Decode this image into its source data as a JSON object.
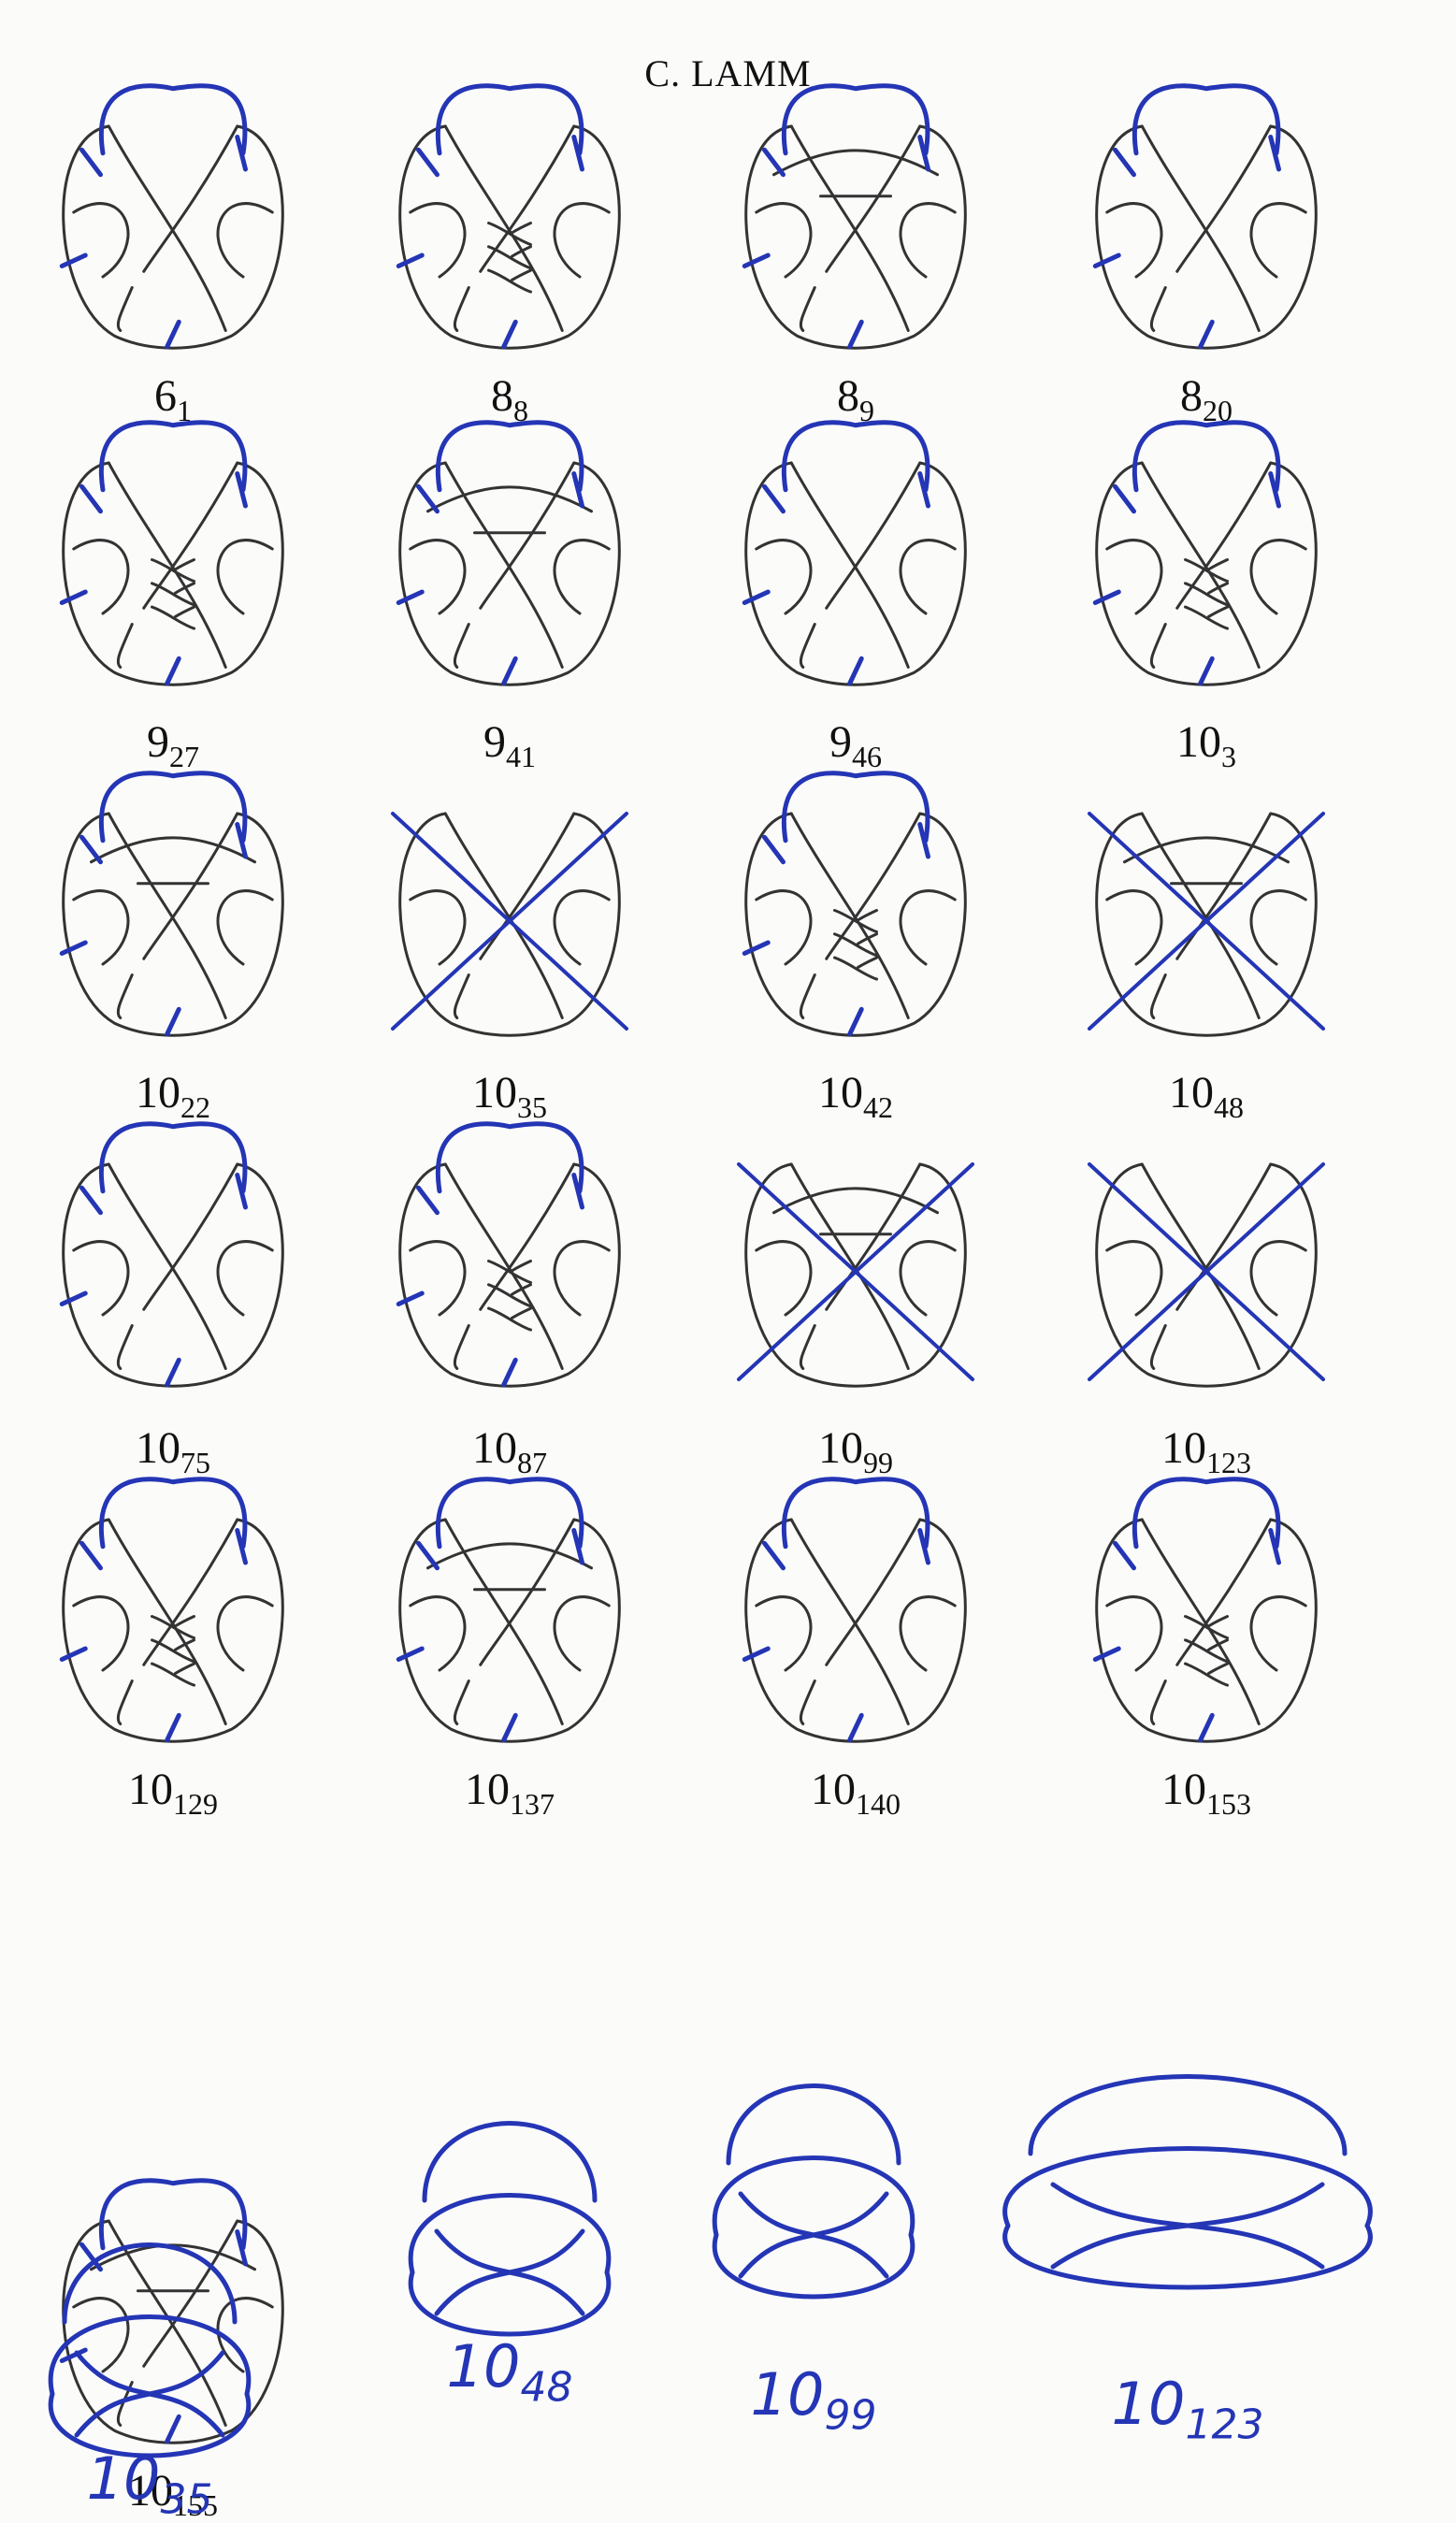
{
  "header": {
    "running_head": "C. LAMM"
  },
  "colors": {
    "ink": "#333333",
    "pen": "#2435b5",
    "paper": "#fbfbfa"
  },
  "printed_knots": [
    {
      "main": "6",
      "sub": "1",
      "pen": "marked"
    },
    {
      "main": "8",
      "sub": "8",
      "pen": "marked"
    },
    {
      "main": "8",
      "sub": "9",
      "pen": "marked"
    },
    {
      "main": "8",
      "sub": "20",
      "pen": "marked"
    },
    {
      "main": "9",
      "sub": "27",
      "pen": "marked"
    },
    {
      "main": "9",
      "sub": "41",
      "pen": "marked"
    },
    {
      "main": "9",
      "sub": "46",
      "pen": "marked"
    },
    {
      "main": "10",
      "sub": "3",
      "pen": "marked"
    },
    {
      "main": "10",
      "sub": "22",
      "pen": "marked"
    },
    {
      "main": "10",
      "sub": "35",
      "pen": "crossed-out"
    },
    {
      "main": "10",
      "sub": "42",
      "pen": "marked"
    },
    {
      "main": "10",
      "sub": "48",
      "pen": "crossed-out"
    },
    {
      "main": "10",
      "sub": "75",
      "pen": "marked"
    },
    {
      "main": "10",
      "sub": "87",
      "pen": "marked"
    },
    {
      "main": "10",
      "sub": "99",
      "pen": "crossed-out"
    },
    {
      "main": "10",
      "sub": "123",
      "pen": "crossed-out"
    },
    {
      "main": "10",
      "sub": "129",
      "pen": "marked"
    },
    {
      "main": "10",
      "sub": "137",
      "pen": "marked"
    },
    {
      "main": "10",
      "sub": "140",
      "pen": "marked"
    },
    {
      "main": "10",
      "sub": "153",
      "pen": "marked"
    },
    {
      "main": "10",
      "sub": "155",
      "pen": "marked"
    }
  ],
  "handwritten_knots": [
    {
      "main": "10",
      "sub": "48"
    },
    {
      "main": "10",
      "sub": "99"
    },
    {
      "main": "10",
      "sub": "123"
    },
    {
      "main": "10",
      "sub": "35"
    }
  ]
}
